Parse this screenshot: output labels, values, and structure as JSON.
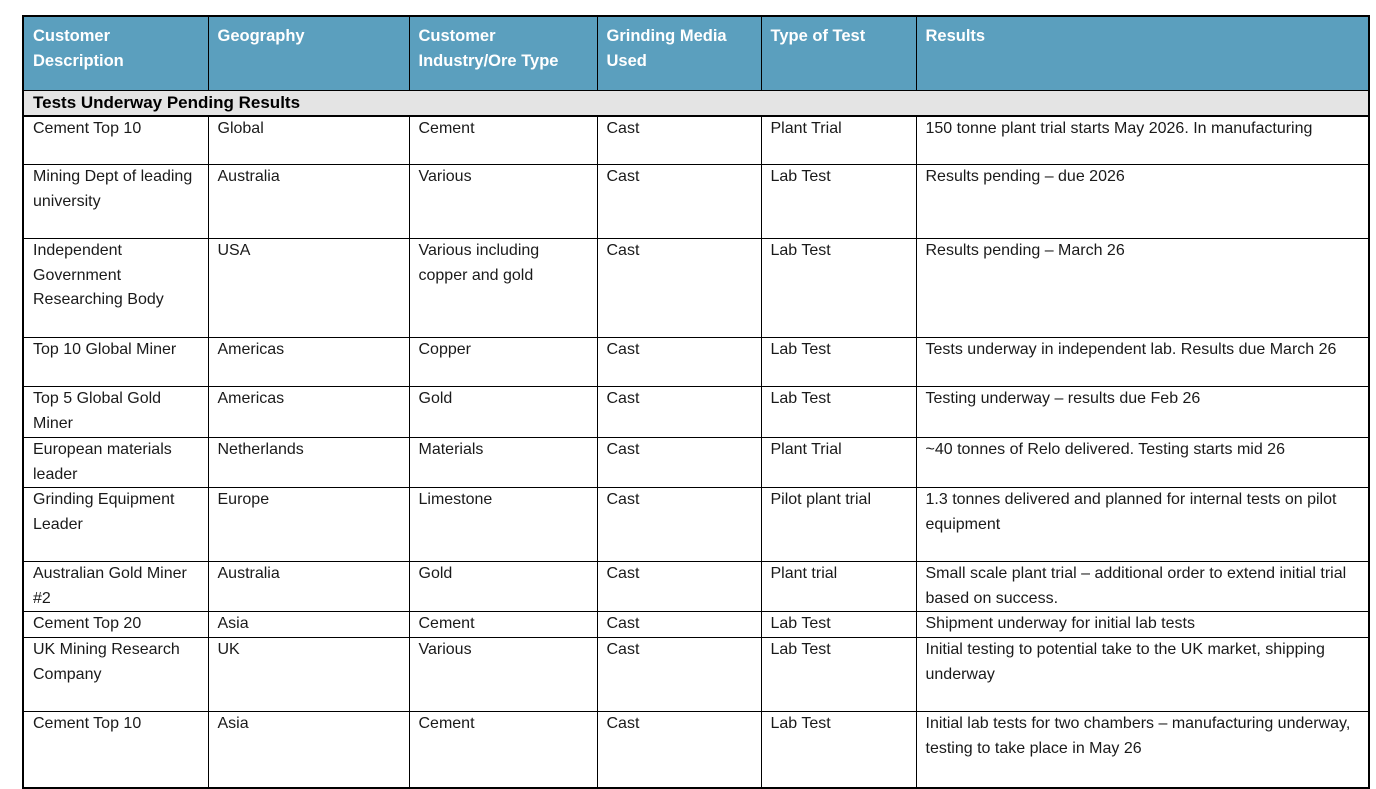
{
  "table": {
    "columns": [
      {
        "id": "customer-description",
        "label": "Customer Description"
      },
      {
        "id": "geography",
        "label": "Geography"
      },
      {
        "id": "customer-industry-ore-type",
        "label": "Customer Industry/Ore Type"
      },
      {
        "id": "grinding-media-used",
        "label": "Grinding Media Used"
      },
      {
        "id": "type-of-test",
        "label": "Type of Test"
      },
      {
        "id": "results",
        "label": "Results"
      }
    ],
    "section_header": "Tests Underway Pending Results",
    "rows": [
      [
        "Cement Top 10",
        "Global",
        "Cement",
        "Cast",
        "Plant Trial",
        "150 tonne plant trial starts May 2026. In manufacturing"
      ],
      [
        "Mining Dept of leading university",
        "Australia",
        "Various",
        "Cast",
        "Lab Test",
        "Results pending – due 2026"
      ],
      [
        "Independent Government Researching Body",
        "USA",
        "Various including copper and gold",
        "Cast",
        "Lab Test",
        "Results pending – March 26"
      ],
      [
        "Top 10 Global Miner",
        "Americas",
        "Copper",
        "Cast",
        "Lab Test",
        "Tests underway in independent lab. Results due March 26"
      ],
      [
        "Top 5 Global Gold Miner",
        "Americas",
        "Gold",
        "Cast",
        "Lab Test",
        "Testing underway – results due Feb 26"
      ],
      [
        "European materials leader",
        "Netherlands",
        "Materials",
        "Cast",
        "Plant Trial",
        "~40 tonnes of Relo delivered. Testing starts mid 26"
      ],
      [
        "Grinding Equipment Leader",
        "Europe",
        "Limestone",
        "Cast",
        "Pilot plant trial",
        "1.3 tonnes delivered and planned for internal tests on pilot equipment"
      ],
      [
        "Australian Gold Miner #2",
        "Australia",
        "Gold",
        "Cast",
        "Plant trial",
        "Small scale plant trial – additional order to extend initial trial based on success."
      ],
      [
        "Cement Top 20",
        "Asia",
        "Cement",
        "Cast",
        "Lab Test",
        "Shipment underway for initial lab tests"
      ],
      [
        "UK Mining Research Company",
        "UK",
        "Various",
        "Cast",
        "Lab Test",
        "Initial testing to potential take to the UK market, shipping underway"
      ],
      [
        "Cement Top 10",
        "Asia",
        "Cement",
        "Cast",
        "Lab Test",
        "Initial lab tests for two chambers – manufacturing underway, testing to take place in May 26"
      ]
    ]
  },
  "colors": {
    "header_background": "#5B9FBE",
    "header_text": "#FFFFFF",
    "section_background": "#E4E4E4",
    "border": "#000000",
    "body_text": "#1A1A1A"
  }
}
